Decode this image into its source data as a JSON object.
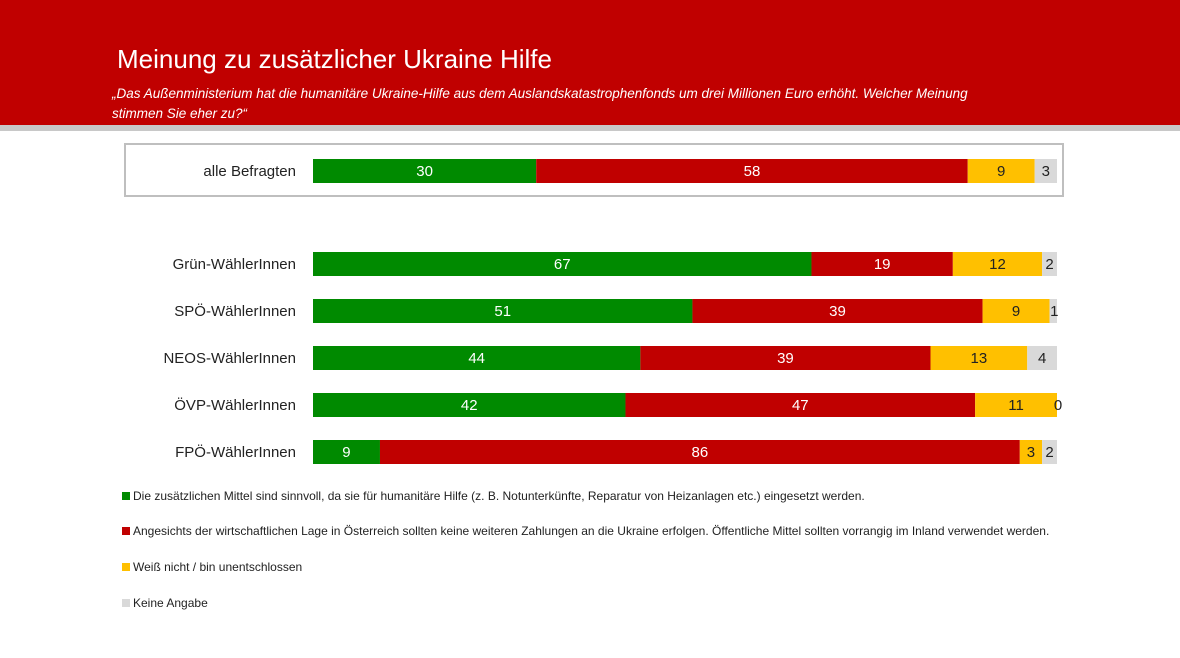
{
  "header": {
    "title": "Meinung zu zusätzlicher Ukraine Hilfe",
    "subtitle": "„Das Außenministerium hat die humanitäre Ukraine-Hilfe aus dem Auslandskatastrophenfonds um drei Millionen Euro erhöht. Welcher Meinung stimmen Sie eher zu?“"
  },
  "chart_data": {
    "type": "bar",
    "orientation": "horizontal",
    "stacked": true,
    "xlim": [
      0,
      100
    ],
    "categories": [
      "alle Befragten",
      "Grün-WählerInnen",
      "SPÖ-WählerInnen",
      "NEOS-WählerInnen",
      "ÖVP-WählerInnen",
      "FPÖ-WählerInnen"
    ],
    "series": [
      {
        "name": "Die zusätzlichen Mittel sind sinnvoll, da sie für humanitäre Hilfe (z. B. Notunterkünfte, Reparatur von Heizanlagen etc.) eingesetzt werden.",
        "color": "#008a00",
        "values": [
          30,
          67,
          51,
          44,
          42,
          9
        ]
      },
      {
        "name": "Angesichts der wirtschaftlichen Lage in Österreich sollten keine weiteren Zahlungen an die Ukraine erfolgen. Öffentliche Mittel sollten vorrangig im Inland verwendet werden.",
        "color": "#c00000",
        "values": [
          58,
          19,
          39,
          39,
          47,
          86
        ]
      },
      {
        "name": "Weiß nicht / bin unentschlossen",
        "color": "#ffc000",
        "values": [
          9,
          12,
          9,
          13,
          11,
          3
        ]
      },
      {
        "name": "Keine Angabe",
        "color": "#d9d9d9",
        "values": [
          3,
          2,
          1,
          4,
          0,
          2
        ]
      }
    ],
    "legend": "bottom"
  }
}
